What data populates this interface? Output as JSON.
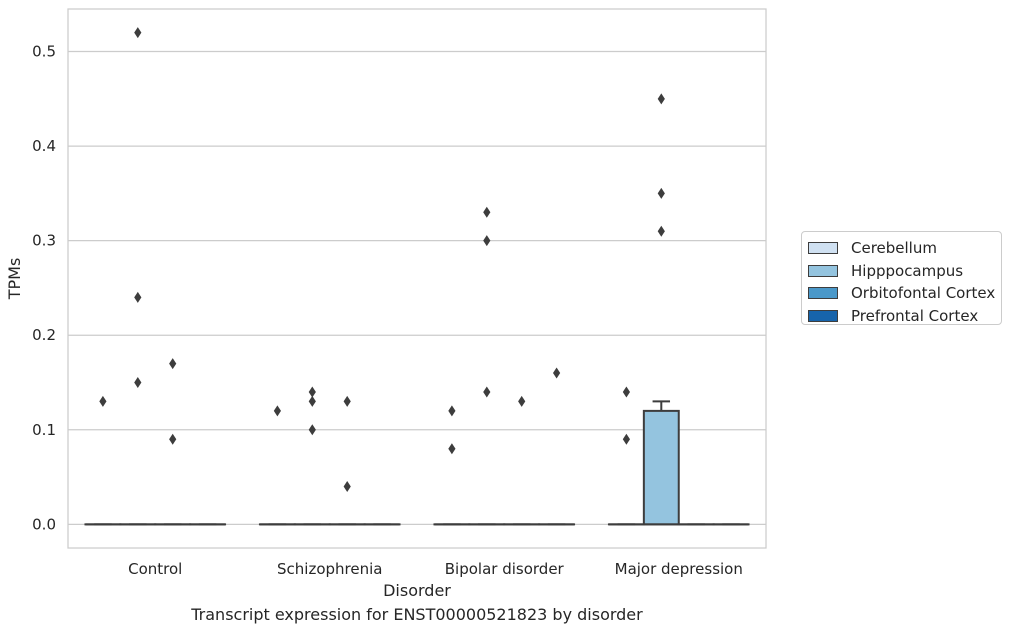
{
  "chart_data": {
    "type": "box",
    "title": "",
    "caption": "Transcript expression for ENST00000521823 by disorder",
    "xlabel": "Disorder",
    "ylabel": "TPMs",
    "ylim": [
      -0.025,
      0.545
    ],
    "yticks": [
      "0.0",
      "0.1",
      "0.2",
      "0.3",
      "0.4",
      "0.5"
    ],
    "grid": "horizontal",
    "legend_position": "right",
    "categories": [
      "Control",
      "Schizophrenia",
      "Bipolar disorder",
      "Major depression"
    ],
    "series": [
      {
        "name": "Cerebellum",
        "color": "#d0e1f2",
        "boxes": [
          {
            "q1": 0,
            "median": 0,
            "q3": 0,
            "whisker_low": 0,
            "whisker_high": 0,
            "outliers": [
              0.13
            ]
          },
          {
            "q1": 0,
            "median": 0,
            "q3": 0,
            "whisker_low": 0,
            "whisker_high": 0,
            "outliers": [
              0.12
            ]
          },
          {
            "q1": 0,
            "median": 0,
            "q3": 0,
            "whisker_low": 0,
            "whisker_high": 0,
            "outliers": [
              0.12,
              0.08
            ]
          },
          {
            "q1": 0,
            "median": 0,
            "q3": 0,
            "whisker_low": 0,
            "whisker_high": 0,
            "outliers": [
              0.14,
              0.09
            ]
          }
        ]
      },
      {
        "name": "Hipppocampus",
        "color": "#94c4df",
        "boxes": [
          {
            "q1": 0,
            "median": 0,
            "q3": 0,
            "whisker_low": 0,
            "whisker_high": 0,
            "outliers": [
              0.52,
              0.24,
              0.15
            ]
          },
          {
            "q1": 0,
            "median": 0,
            "q3": 0,
            "whisker_low": 0,
            "whisker_high": 0,
            "outliers": [
              0.14,
              0.13,
              0.1
            ]
          },
          {
            "q1": 0,
            "median": 0,
            "q3": 0,
            "whisker_low": 0,
            "whisker_high": 0,
            "outliers": [
              0.33,
              0.3,
              0.14
            ]
          },
          {
            "q1": 0,
            "median": 0,
            "q3": 0.12,
            "whisker_low": 0,
            "whisker_high": 0.13,
            "outliers": [
              0.45,
              0.35,
              0.31
            ]
          }
        ]
      },
      {
        "name": "Orbitofontal Cortex",
        "color": "#4a98c9",
        "boxes": [
          {
            "q1": 0,
            "median": 0,
            "q3": 0,
            "whisker_low": 0,
            "whisker_high": 0,
            "outliers": [
              0.17,
              0.09
            ]
          },
          {
            "q1": 0,
            "median": 0,
            "q3": 0,
            "whisker_low": 0,
            "whisker_high": 0,
            "outliers": [
              0.13,
              0.04
            ]
          },
          {
            "q1": 0,
            "median": 0,
            "q3": 0,
            "whisker_low": 0,
            "whisker_high": 0,
            "outliers": [
              0.13
            ]
          },
          {
            "q1": 0,
            "median": 0,
            "q3": 0,
            "whisker_low": 0,
            "whisker_high": 0,
            "outliers": []
          }
        ]
      },
      {
        "name": "Prefrontal Cortex",
        "color": "#1764ab",
        "boxes": [
          {
            "q1": 0,
            "median": 0,
            "q3": 0,
            "whisker_low": 0,
            "whisker_high": 0,
            "outliers": []
          },
          {
            "q1": 0,
            "median": 0,
            "q3": 0,
            "whisker_low": 0,
            "whisker_high": 0,
            "outliers": []
          },
          {
            "q1": 0,
            "median": 0,
            "q3": 0,
            "whisker_low": 0,
            "whisker_high": 0,
            "outliers": [
              0.16
            ]
          },
          {
            "q1": 0,
            "median": 0,
            "q3": 0,
            "whisker_low": 0,
            "whisker_high": 0,
            "outliers": []
          }
        ]
      }
    ]
  }
}
